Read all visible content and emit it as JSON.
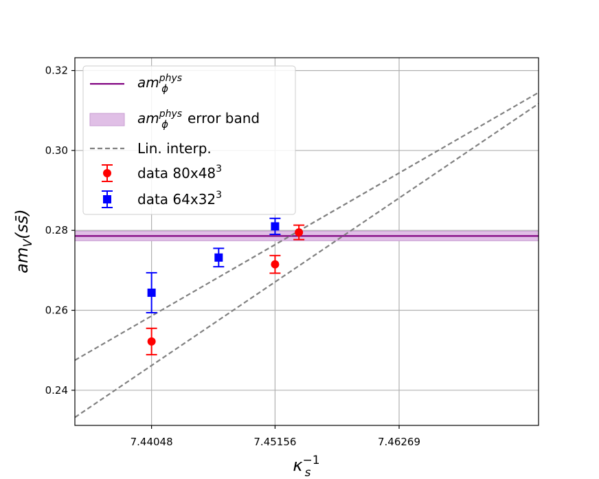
{
  "chart_data": {
    "type": "scatter",
    "xlabel": {
      "base": "κ",
      "sub": "s",
      "sup": "−1"
    },
    "ylabel": {
      "prefix": "am",
      "sub": "V",
      "paren": "(ss̄)"
    },
    "xlim": [
      7.4336,
      7.4752
    ],
    "ylim": [
      0.2312,
      0.3232
    ],
    "xticks": [
      7.44048,
      7.45156,
      7.46269
    ],
    "xtick_labels": [
      "7.44048",
      "7.45156",
      "7.46269"
    ],
    "yticks": [
      0.24,
      0.26,
      0.28,
      0.3,
      0.32
    ],
    "ytick_labels": [
      "0.24",
      "0.26",
      "0.28",
      "0.30",
      "0.32"
    ],
    "grid": true,
    "legend_position": "top-left",
    "reference": {
      "name_base": "am",
      "name_sub": "ϕ",
      "name_sup": "phys",
      "value": 0.2786,
      "band": [
        0.2774,
        0.2798
      ],
      "color": "#800080",
      "band_color": "#e0bfe6",
      "band_edge": "#c79cd2"
    },
    "series": [
      {
        "label_main": "data 80x48",
        "label_sup": "3",
        "marker": "circle",
        "color": "#ff0000",
        "points": [
          {
            "x": 7.44048,
            "y": 0.2522,
            "err": 0.0033
          },
          {
            "x": 7.45156,
            "y": 0.2715,
            "err": 0.0022
          },
          {
            "x": 7.4537,
            "y": 0.2795,
            "err": 0.0018
          }
        ],
        "fit": {
          "x": [
            7.4336,
            7.4752
          ],
          "y": [
            0.2332,
            0.3117
          ]
        }
      },
      {
        "label_main": "data 64x32",
        "label_sup": "3",
        "marker": "square",
        "color": "#0000ff",
        "points": [
          {
            "x": 7.44048,
            "y": 0.2644,
            "err": 0.005
          },
          {
            "x": 7.4465,
            "y": 0.2732,
            "err": 0.0023
          },
          {
            "x": 7.45156,
            "y": 0.281,
            "err": 0.002
          }
        ],
        "fit": {
          "x": [
            7.4336,
            7.4752
          ],
          "y": [
            0.2475,
            0.3145
          ]
        }
      }
    ],
    "fit_label": "Lin. interp.",
    "fit_color": "#808080",
    "band_label": "error band"
  }
}
